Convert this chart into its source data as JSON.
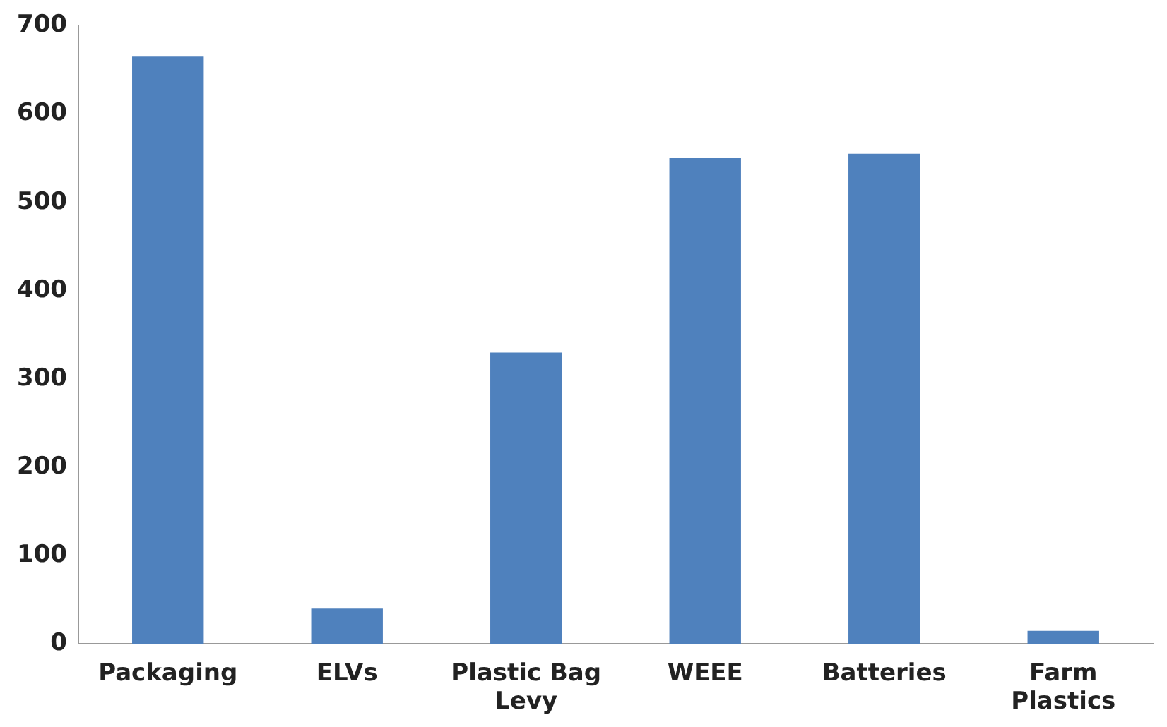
{
  "chart_data": {
    "type": "bar",
    "categories": [
      "Packaging",
      "ELVs",
      "Plastic Bag Levy",
      "WEEE",
      "Batteries",
      "Farm Plastics"
    ],
    "values": [
      665,
      40,
      330,
      550,
      555,
      15
    ],
    "color": "#4f81bd",
    "ylim": [
      0,
      700
    ],
    "yticks": [
      0,
      100,
      200,
      300,
      400,
      500,
      600,
      700
    ],
    "grid": false,
    "legend": false
  }
}
